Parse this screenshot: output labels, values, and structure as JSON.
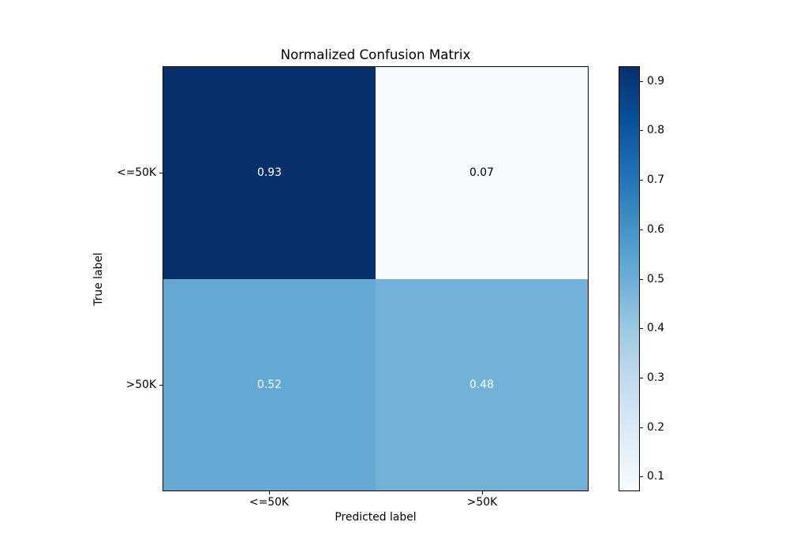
{
  "chart_data": {
    "type": "heatmap",
    "title": "Normalized Confusion Matrix",
    "xlabel": "Predicted label",
    "ylabel": "True label",
    "x_categories": [
      "<=50K",
      ">50K"
    ],
    "y_categories": [
      "<=50K",
      ">50K"
    ],
    "matrix": [
      [
        0.93,
        0.07
      ],
      [
        0.52,
        0.48
      ]
    ],
    "cells": [
      {
        "row": 0,
        "col": 0,
        "value": 0.93,
        "label": "0.93",
        "bg": "#08306b",
        "fg": "#ffffff"
      },
      {
        "row": 0,
        "col": 1,
        "value": 0.07,
        "label": "0.07",
        "bg": "#f7fbff",
        "fg": "#000000"
      },
      {
        "row": 1,
        "col": 0,
        "value": 0.52,
        "label": "0.52",
        "bg": "#63a9d3",
        "fg": "#ffffff"
      },
      {
        "row": 1,
        "col": 1,
        "value": 0.48,
        "label": "0.48",
        "bg": "#72b1d8",
        "fg": "#ffffff"
      }
    ],
    "colormap": "Blues",
    "colors": {
      "cmap_min": "#f7fbff",
      "cmap_max": "#08306b",
      "axis": "#000000",
      "background": "#ffffff"
    },
    "colorbar": {
      "vmin": 0.07,
      "vmax": 0.93,
      "tick_labels": [
        "0.1",
        "0.2",
        "0.3",
        "0.4",
        "0.5",
        "0.6",
        "0.7",
        "0.8",
        "0.9"
      ],
      "tick_values": [
        0.1,
        0.2,
        0.3,
        0.4,
        0.5,
        0.6,
        0.7,
        0.8,
        0.9
      ],
      "position": "right"
    },
    "grid": false,
    "legend": false
  }
}
